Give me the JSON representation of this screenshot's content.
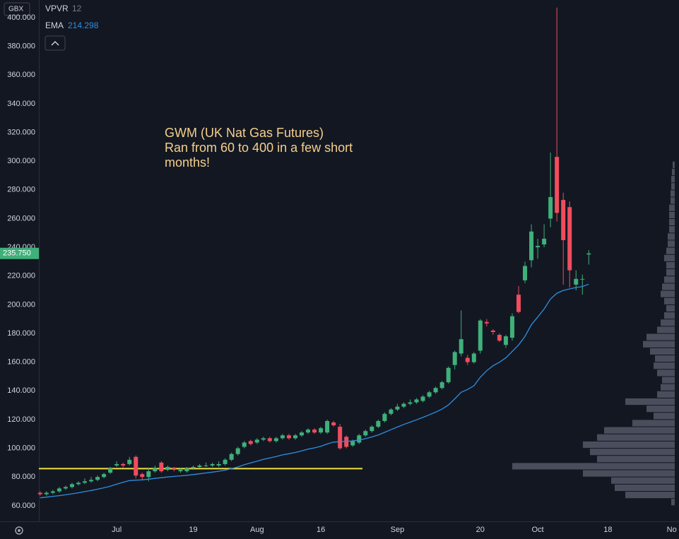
{
  "chart_data": {
    "type": "candlestick",
    "currency": "GBX",
    "indicator_name": "VPVR",
    "indicator_param": "12",
    "ema_name": "EMA",
    "ema_last": "214.298",
    "annotation": [
      "GWM (UK Nat Gas Futures)",
      "Ran from 60 to 400 in a few short",
      "months!"
    ],
    "last_price": {
      "value": 235.75,
      "label": "235.750"
    },
    "colors": {
      "up": "#3fb07a",
      "down": "#ef4d5e",
      "ema": "#2c8fe0",
      "level": "#f0e040",
      "profile": "#5d6270"
    },
    "level": 85.8,
    "open": [
      69,
      68,
      69,
      70,
      72,
      73,
      75,
      76,
      77,
      78,
      80,
      83,
      88,
      89,
      89,
      94,
      82,
      80,
      84,
      90,
      85,
      86,
      84,
      84,
      86,
      87,
      88,
      88,
      88,
      89,
      92,
      96,
      101,
      105,
      104,
      106,
      107,
      105,
      107,
      109,
      107,
      109,
      111,
      113,
      111,
      111,
      118,
      115,
      108,
      102,
      104,
      109,
      112,
      115,
      119,
      124,
      127,
      129,
      131,
      132,
      133,
      136,
      139,
      142,
      146,
      158,
      166,
      163,
      160,
      168,
      188,
      182,
      179,
      172,
      177,
      207,
      217,
      231,
      240,
      242,
      260,
      303,
      273,
      268,
      214,
      218,
      235
    ],
    "high": [
      70,
      70,
      71,
      73,
      74,
      76,
      77,
      79,
      80,
      81,
      83,
      87,
      91,
      90,
      94,
      95,
      83,
      86,
      88,
      91,
      88,
      87,
      86,
      87,
      88,
      89,
      90,
      90,
      91,
      93,
      97,
      101,
      105,
      106,
      107,
      108,
      108,
      108,
      110,
      110,
      110,
      112,
      114,
      114,
      115,
      120,
      119,
      117,
      109,
      106,
      110,
      113,
      116,
      120,
      125,
      128,
      131,
      132,
      134,
      135,
      137,
      140,
      143,
      147,
      157,
      168,
      196,
      165,
      167,
      190,
      190,
      183,
      180,
      179,
      194,
      213,
      230,
      256,
      246,
      256,
      306,
      407,
      278,
      272,
      224,
      221,
      238
    ],
    "low": [
      67,
      67,
      68,
      69,
      71,
      72,
      74,
      75,
      76,
      77,
      79,
      82,
      87,
      86,
      88,
      79,
      78,
      77,
      83,
      83,
      84,
      84,
      83,
      83,
      85,
      86,
      87,
      87,
      87,
      88,
      91,
      95,
      100,
      102,
      103,
      105,
      104,
      104,
      106,
      106,
      106,
      108,
      110,
      110,
      110,
      110,
      115,
      99,
      100,
      101,
      103,
      108,
      111,
      114,
      118,
      123,
      126,
      128,
      130,
      131,
      132,
      135,
      138,
      141,
      145,
      155,
      164,
      158,
      159,
      166,
      185,
      179,
      174,
      170,
      175,
      194,
      215,
      226,
      232,
      240,
      254,
      258,
      214,
      212,
      210,
      207,
      228
    ],
    "close": [
      68,
      69,
      70,
      72,
      73,
      75,
      76,
      77,
      78,
      80,
      82,
      86,
      89,
      88,
      92,
      81,
      80,
      84,
      86,
      84,
      87,
      85,
      85,
      86,
      87,
      88,
      88,
      89,
      89,
      92,
      96,
      100,
      104,
      103,
      106,
      107,
      105,
      107,
      109,
      107,
      109,
      111,
      113,
      111,
      114,
      119,
      116,
      100,
      101,
      105,
      109,
      112,
      115,
      119,
      124,
      127,
      129,
      131,
      132,
      134,
      136,
      139,
      142,
      146,
      156,
      167,
      176,
      160,
      166,
      189,
      187,
      181,
      175,
      178,
      192,
      195,
      227,
      251,
      241,
      246,
      275,
      264,
      245,
      224,
      218,
      218,
      235.75
    ],
    "ema": [
      65.5,
      66,
      66.5,
      67,
      67.6,
      68.3,
      69,
      69.8,
      70.6,
      71.5,
      72.5,
      73.6,
      75,
      76.3,
      77.5,
      77.8,
      78,
      78.5,
      79,
      79.5,
      80,
      80.4,
      80.8,
      81.2,
      81.7,
      82.2,
      82.8,
      83.4,
      84,
      84.8,
      85.8,
      87,
      88.5,
      89.8,
      91,
      92.3,
      93.3,
      94.3,
      95.4,
      96.2,
      97.1,
      98.2,
      99.4,
      100.3,
      101.4,
      103,
      104.3,
      104.6,
      104.8,
      105.1,
      105.8,
      106.7,
      107.9,
      109.3,
      111.1,
      113,
      114.8,
      116.6,
      118.2,
      119.8,
      121.5,
      123.3,
      125.2,
      127.3,
      130.2,
      134.5,
      139,
      141,
      143.6,
      149.5,
      154,
      157.5,
      160,
      163,
      167.5,
      172,
      178,
      186,
      191.5,
      197,
      204,
      208,
      210,
      211,
      212,
      212.7,
      214.298
    ],
    "profile_price": [
      62.5,
      67.5,
      72.5,
      77.5,
      82.5,
      87.5,
      92.5,
      97.5,
      102.5,
      107.5,
      112.5,
      117.5,
      122.5,
      127.5,
      132.5,
      137.5,
      142.5,
      147.5,
      152.5,
      157.5,
      162.5,
      167.5,
      172.5,
      177.5,
      182.5,
      187.5,
      192.5,
      197.5,
      202.5,
      207.5,
      212.5,
      217.5,
      222.5,
      227.5,
      232.5,
      237.5,
      242.5,
      247.5,
      252.5,
      257.5,
      262.5,
      267.5,
      272.5,
      277.5,
      282.5,
      287.5,
      292.5,
      297.5
    ],
    "profile_volume": [
      5,
      70,
      85,
      90,
      130,
      230,
      110,
      120,
      130,
      110,
      100,
      60,
      30,
      40,
      70,
      25,
      20,
      18,
      25,
      30,
      28,
      35,
      45,
      40,
      25,
      20,
      15,
      12,
      15,
      20,
      18,
      15,
      12,
      12,
      15,
      12,
      10,
      10,
      8,
      8,
      8,
      8,
      6,
      6,
      5,
      5,
      4,
      3
    ],
    "xlim": [
      -0.2,
      99.7
    ],
    "xticks": [
      {
        "value": 12,
        "label": "Jul"
      },
      {
        "value": 24,
        "label": "19"
      },
      {
        "value": 34,
        "label": "Aug"
      },
      {
        "value": 44,
        "label": "16"
      },
      {
        "value": 56,
        "label": "Sep"
      },
      {
        "value": 69,
        "label": "20"
      },
      {
        "value": 78,
        "label": "Oct"
      },
      {
        "value": 89,
        "label": "18"
      },
      {
        "value": 99,
        "label": "No"
      }
    ],
    "ylim": [
      49.1,
      412.3
    ],
    "yticks": [
      {
        "value": 60,
        "label": "60.000"
      },
      {
        "value": 80,
        "label": "80.000"
      },
      {
        "value": 100,
        "label": "100.000"
      },
      {
        "value": 120,
        "label": "120.000"
      },
      {
        "value": 140,
        "label": "140.000"
      },
      {
        "value": 160,
        "label": "160.000"
      },
      {
        "value": 180,
        "label": "180.000"
      },
      {
        "value": 200,
        "label": "200.000"
      },
      {
        "value": 220,
        "label": "220.000"
      },
      {
        "value": 240,
        "label": "240.000"
      },
      {
        "value": 260,
        "label": "260.000"
      },
      {
        "value": 280,
        "label": "280.000"
      },
      {
        "value": 300,
        "label": "300.000"
      },
      {
        "value": 320,
        "label": "320.000"
      },
      {
        "value": 340,
        "label": "340.000"
      },
      {
        "value": 360,
        "label": "360.000"
      },
      {
        "value": 380,
        "label": "380.000"
      },
      {
        "value": 400,
        "label": "400.000"
      }
    ],
    "grid": false
  }
}
